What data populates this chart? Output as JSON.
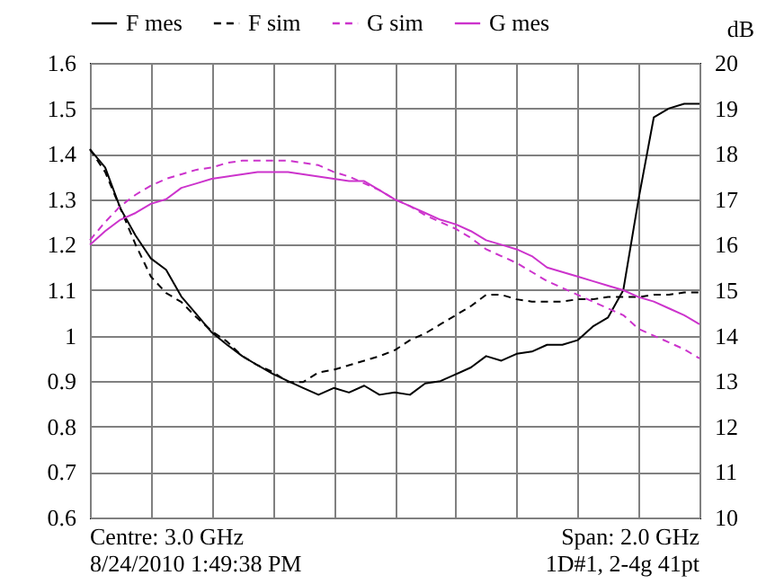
{
  "chart_data": {
    "type": "line",
    "categories": [
      null,
      null,
      null,
      null,
      null,
      null,
      null,
      null,
      null,
      null,
      null,
      null,
      null,
      null,
      null,
      null,
      null,
      null,
      null,
      null,
      null,
      null,
      null,
      null,
      null,
      null,
      null,
      null,
      null,
      null,
      null,
      null,
      null,
      null,
      null,
      null,
      null,
      null,
      null,
      null,
      null
    ],
    "series": [
      {
        "name": "F mes",
        "color": "#000000",
        "line_style": "solid",
        "values": [
          1.41,
          1.37,
          1.28,
          1.22,
          1.17,
          1.145,
          1.086,
          1.047,
          1.007,
          0.98,
          0.955,
          0.935,
          0.916,
          0.9,
          0.885,
          0.87,
          0.885,
          0.875,
          0.89,
          0.87,
          0.875,
          0.87,
          0.895,
          0.9,
          0.915,
          0.93,
          0.955,
          0.945,
          0.96,
          0.965,
          0.98,
          0.98,
          0.99,
          1.02,
          1.04,
          1.1,
          1.3,
          1.48,
          1.5,
          1.51,
          1.51
        ]
      },
      {
        "name": "F sim",
        "color": "#000000",
        "line_style": "dashed",
        "values": [
          1.41,
          1.36,
          1.28,
          1.2,
          1.13,
          1.094,
          1.074,
          1.04,
          1.01,
          0.987,
          0.955,
          0.935,
          0.92,
          0.898,
          0.898,
          0.919,
          0.925,
          0.935,
          0.945,
          0.955,
          0.968,
          0.99,
          1.005,
          1.025,
          1.045,
          1.065,
          1.09,
          1.09,
          1.08,
          1.075,
          1.075,
          1.075,
          1.08,
          1.08,
          1.085,
          1.085,
          1.085,
          1.09,
          1.09,
          1.095,
          1.095
        ]
      },
      {
        "name": "G sim",
        "color": "#cc33cc",
        "line_style": "dashed",
        "axis": "y2",
        "values": [
          16.1,
          16.5,
          16.85,
          17.1,
          17.3,
          17.45,
          17.55,
          17.65,
          17.7,
          17.8,
          17.85,
          17.85,
          17.85,
          17.85,
          17.8,
          17.75,
          17.6,
          17.5,
          17.35,
          17.2,
          17.0,
          16.85,
          16.65,
          16.5,
          16.35,
          16.15,
          15.9,
          15.75,
          15.6,
          15.4,
          15.2,
          15.05,
          14.9,
          14.75,
          14.6,
          14.45,
          14.15,
          14.0,
          13.85,
          13.7,
          13.5
        ]
      },
      {
        "name": "G mes",
        "color": "#cc33cc",
        "line_style": "solid",
        "axis": "y2",
        "values": [
          16.0,
          16.3,
          16.55,
          16.7,
          16.9,
          17.0,
          17.25,
          17.35,
          17.45,
          17.5,
          17.55,
          17.6,
          17.6,
          17.6,
          17.55,
          17.5,
          17.45,
          17.4,
          17.4,
          17.2,
          17.0,
          16.85,
          16.7,
          16.55,
          16.45,
          16.3,
          16.1,
          16.0,
          15.9,
          15.75,
          15.5,
          15.4,
          15.3,
          15.2,
          15.1,
          15.0,
          14.85,
          14.75,
          14.6,
          14.45,
          14.25
        ]
      }
    ],
    "ylim": [
      0.6,
      1.6
    ],
    "yticks": [
      0.6,
      0.7,
      0.8,
      0.9,
      1,
      1.1,
      1.2,
      1.3,
      1.4,
      1.5,
      1.6
    ],
    "y2lim": [
      10,
      20
    ],
    "y2ticks": [
      10,
      11,
      12,
      13,
      14,
      15,
      16,
      17,
      18,
      19,
      20
    ],
    "y2label": "dB",
    "grid": true,
    "legend": "top left",
    "marker": "none",
    "annotations": [
      "Centre: 3.0 GHz",
      "Span: 2.0 GHz",
      "8/24/2010 1:49:38 PM",
      "1D#1, 2-4g 41pt"
    ]
  }
}
